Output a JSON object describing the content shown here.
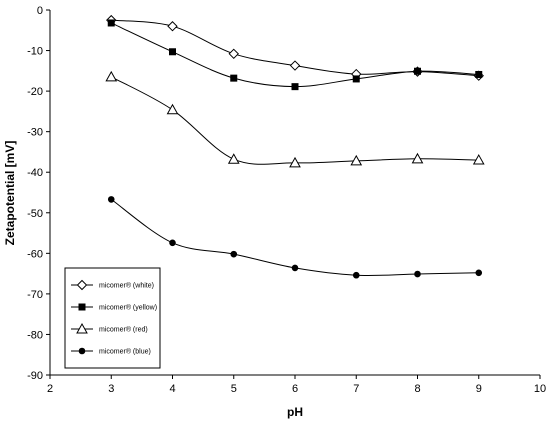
{
  "chart_data": {
    "type": "line",
    "xlabel": "pH",
    "ylabel": "Zetapotential [mV]",
    "xlim": [
      2,
      10
    ],
    "ylim": [
      -90,
      0
    ],
    "x_ticks": [
      2,
      3,
      4,
      5,
      6,
      7,
      8,
      9,
      10
    ],
    "y_ticks": [
      0,
      -10,
      -20,
      -30,
      -40,
      -50,
      -60,
      -70,
      -80,
      -90
    ],
    "grid": false,
    "legend_position": "bottom-left",
    "series": [
      {
        "name": "micomer® (white)",
        "marker": "diamond",
        "x": [
          3,
          4,
          5,
          6,
          7,
          8,
          9
        ],
        "values": [
          -2.5,
          -4,
          -10.8,
          -13.7,
          -15.8,
          -15.2,
          -16.2
        ]
      },
      {
        "name": "micomer® (yellow)",
        "marker": "square",
        "x": [
          3,
          4,
          5,
          6,
          7,
          8,
          9
        ],
        "values": [
          -3.2,
          -10.3,
          -16.8,
          -18.9,
          -17,
          -15.1,
          -15.9
        ]
      },
      {
        "name": "micomer® (red)",
        "marker": "triangle",
        "x": [
          3,
          4,
          5,
          6,
          7,
          8,
          9
        ],
        "values": [
          -16.5,
          -24.6,
          -36.8,
          -37.7,
          -37.2,
          -36.7,
          -37
        ]
      },
      {
        "name": "micomer® (blue)",
        "marker": "circle",
        "x": [
          3,
          4,
          5,
          6,
          7,
          8,
          9
        ],
        "values": [
          -46.7,
          -57.4,
          -60.2,
          -63.6,
          -65.4,
          -65.1,
          -64.8
        ]
      }
    ]
  }
}
